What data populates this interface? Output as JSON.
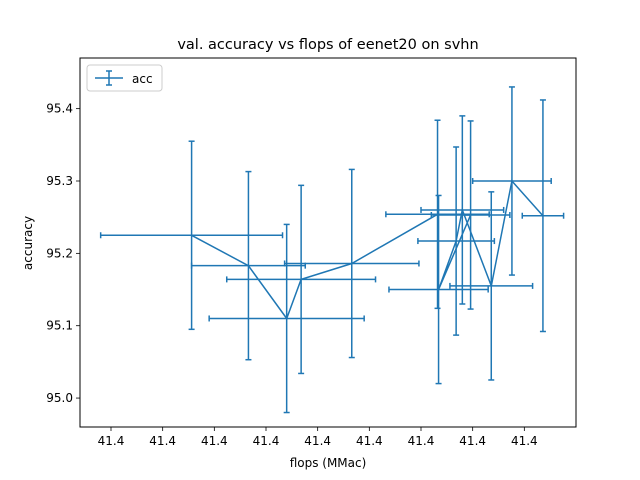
{
  "chart_data": {
    "type": "scatter",
    "title": "val. accuracy vs flops of eenet20 on svhn",
    "xlabel": "flops (MMac)",
    "ylabel": "accuracy",
    "x_domain": [
      0,
      480
    ],
    "ylim": [
      94.96,
      95.47
    ],
    "x_tick_positions": [
      30,
      80,
      130,
      180,
      230,
      280,
      330,
      380,
      430
    ],
    "x_tick_labels": [
      "41.4",
      "41.4",
      "41.4",
      "41.4",
      "41.4",
      "41.4",
      "41.4",
      "41.4",
      "41.4"
    ],
    "y_ticks": [
      95.0,
      95.1,
      95.2,
      95.3,
      95.4
    ],
    "y_tick_labels": [
      "95.0",
      "95.1",
      "95.2",
      "95.3",
      "95.4"
    ],
    "grid": false,
    "legend_position": "top-left",
    "series": [
      {
        "name": "acc",
        "color": "#1f77b4",
        "points": [
          {
            "x": 108,
            "y": 95.225,
            "xerr": 88,
            "yerr": 0.13
          },
          {
            "x": 163,
            "y": 95.183,
            "xerr": 55,
            "yerr": 0.13
          },
          {
            "x": 200,
            "y": 95.11,
            "xerr": 75,
            "yerr": 0.13
          },
          {
            "x": 214,
            "y": 95.164,
            "xerr": 72,
            "yerr": 0.13
          },
          {
            "x": 263,
            "y": 95.186,
            "xerr": 65,
            "yerr": 0.13
          },
          {
            "x": 346,
            "y": 95.254,
            "xerr": 50,
            "yerr": 0.13
          },
          {
            "x": 378,
            "y": 95.253,
            "xerr": 38,
            "yerr": 0.13
          },
          {
            "x": 347,
            "y": 95.15,
            "xerr": 48,
            "yerr": 0.13
          },
          {
            "x": 364,
            "y": 95.217,
            "xerr": 37,
            "yerr": 0.13
          },
          {
            "x": 370,
            "y": 95.26,
            "xerr": 40,
            "yerr": 0.13
          },
          {
            "x": 398,
            "y": 95.155,
            "xerr": 40,
            "yerr": 0.13
          },
          {
            "x": 418,
            "y": 95.3,
            "xerr": 38,
            "yerr": 0.13
          },
          {
            "x": 448,
            "y": 95.252,
            "xerr": 20,
            "yerr": 0.16
          }
        ]
      }
    ]
  }
}
